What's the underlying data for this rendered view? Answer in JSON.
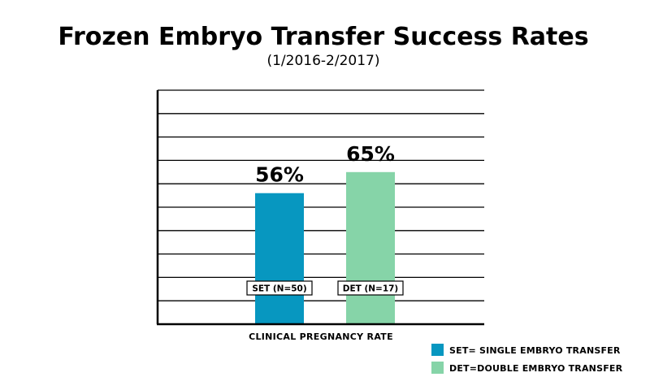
{
  "chart_data": {
    "type": "bar",
    "title": "Frozen Embryo Transfer Success Rates",
    "subtitle": "(1/2016-2/2017)",
    "xlabel": "CLINICAL PREGNANCY RATE",
    "ylabel": "",
    "ylim": [
      0,
      100
    ],
    "grid": true,
    "categories": [
      "SET (N=50)",
      "DET (N=17)"
    ],
    "values": [
      56,
      65
    ],
    "value_labels": [
      "56%",
      "65%"
    ],
    "colors": [
      "#0797c0",
      "#86d4a8"
    ],
    "legend_position": "bottom-right",
    "legend": [
      {
        "label": "SET= SINGLE EMBRYO TRANSFER",
        "color": "#0797c0"
      },
      {
        "label": "DET=DOUBLE EMBRYO TRANSFER",
        "color": "#86d4a8"
      }
    ]
  }
}
